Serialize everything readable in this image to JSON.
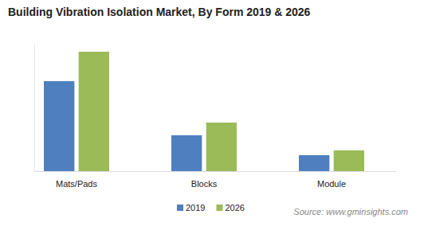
{
  "chart_data": {
    "type": "bar",
    "title": "Building Vibration Isolation Market, By Form 2019 & 2026",
    "categories": [
      "Mats/Pads",
      "Blocks",
      "Module"
    ],
    "series": [
      {
        "name": "2019",
        "color": "#4f7fbf",
        "values": [
          113,
          45,
          20
        ]
      },
      {
        "name": "2026",
        "color": "#9bbb59",
        "values": [
          150,
          61,
          26
        ]
      }
    ],
    "ylim": [
      0,
      160
    ],
    "yticks": [],
    "tick_labels": "x",
    "grid": false,
    "legend": "bottom",
    "source": "Source: www.gminsights.com"
  }
}
